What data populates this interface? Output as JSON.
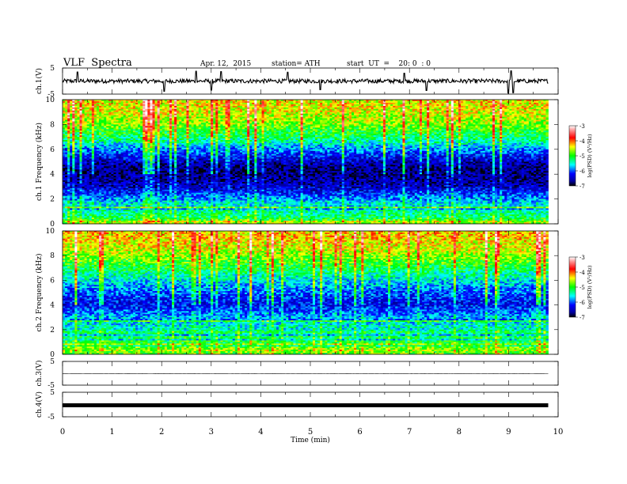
{
  "header": {
    "title": "VLF  Spectra",
    "date": "Apr. 12,  2015",
    "station": "station= ATH",
    "start": "start  UT  =    20: 0  : 0"
  },
  "chart_data": [
    {
      "type": "line",
      "panel": "ch1-waveform",
      "ylabel": "ch.1(V)",
      "yticks": [
        "5",
        "-5"
      ],
      "ylim": [
        -5,
        5
      ],
      "xlim": [
        0,
        10
      ],
      "data_end_min": 9.8,
      "baseline": 0,
      "noise_amplitude": 0.8,
      "spikes": [
        {
          "x": 0.3,
          "y": 3.5
        },
        {
          "x": 2.05,
          "y": -3.9
        },
        {
          "x": 2.7,
          "y": 3.8
        },
        {
          "x": 3.0,
          "y": -3.5
        },
        {
          "x": 3.2,
          "y": 3.6
        },
        {
          "x": 4.55,
          "y": 3.4
        },
        {
          "x": 5.2,
          "y": -3.3
        },
        {
          "x": 6.9,
          "y": 3.0
        },
        {
          "x": 7.35,
          "y": -3.6
        },
        {
          "x": 9.0,
          "y": -4.6
        },
        {
          "x": 9.05,
          "y": 3.9
        },
        {
          "x": 9.1,
          "y": -4.5
        }
      ]
    },
    {
      "type": "heatmap",
      "panel": "ch1-spectrogram",
      "ylabel": "ch.1 Frequency  (kHz)",
      "yticks": [
        "0",
        "2",
        "4",
        "6",
        "8",
        "10"
      ],
      "ylim": [
        0,
        10
      ],
      "xlim": [
        0,
        10
      ],
      "data_end_min": 9.8,
      "freq_profile_kHz": [
        0,
        0.5,
        1,
        1.5,
        2,
        2.5,
        3,
        3.5,
        4,
        4.5,
        5,
        5.5,
        6,
        6.5,
        7,
        7.5,
        8,
        8.5,
        9,
        9.5,
        10
      ],
      "log_psd_profile": [
        -4.6,
        -5.2,
        -5.4,
        -5.5,
        -5.8,
        -6.2,
        -6.5,
        -6.6,
        -6.7,
        -6.7,
        -6.5,
        -6.2,
        -5.9,
        -5.5,
        -5.2,
        -5.0,
        -4.7,
        -4.6,
        -4.5,
        -4.4,
        -4.4
      ],
      "colorbar": {
        "label": "log(PSD) (V²/Hz)",
        "ticks": [
          "-3",
          "-4",
          "-5",
          "-6",
          "-7"
        ],
        "range": [
          -7,
          -3
        ]
      }
    },
    {
      "type": "heatmap",
      "panel": "ch2-spectrogram",
      "ylabel": "ch.2 Frequency  (kHz)",
      "yticks": [
        "0",
        "2",
        "4",
        "6",
        "8",
        "10"
      ],
      "ylim": [
        0,
        10
      ],
      "xlim": [
        0,
        10
      ],
      "data_end_min": 9.8,
      "freq_profile_kHz": [
        0,
        0.5,
        1,
        1.5,
        2,
        2.5,
        3,
        3.5,
        4,
        4.5,
        5,
        5.5,
        6,
        6.5,
        7,
        7.5,
        8,
        8.5,
        9,
        9.5,
        10
      ],
      "log_psd_profile": [
        -4.4,
        -4.8,
        -5.0,
        -5.2,
        -5.4,
        -5.6,
        -5.8,
        -6.0,
        -6.3,
        -6.2,
        -6.0,
        -5.8,
        -5.6,
        -5.4,
        -5.1,
        -4.9,
        -4.7,
        -4.5,
        -4.4,
        -4.3,
        -4.3
      ],
      "colorbar": {
        "label": "log(PSD) (V²/Hz)",
        "ticks": [
          "-3",
          "-4",
          "-5",
          "-6",
          "-7"
        ],
        "range": [
          -7,
          -3
        ]
      }
    },
    {
      "type": "line",
      "panel": "ch3-waveform",
      "ylabel": "ch.3(V)",
      "yticks": [
        "5",
        "-5"
      ],
      "ylim": [
        -5,
        5
      ],
      "xlim": [
        0,
        10
      ],
      "data_end_min": 9.8,
      "baseline": -0.2,
      "noise_amplitude": 0.05
    },
    {
      "type": "line",
      "panel": "ch4-waveform",
      "ylabel": "ch.4(V)",
      "yticks": [
        "5",
        "-5"
      ],
      "ylim": [
        -5,
        5
      ],
      "xlim": [
        0,
        10
      ],
      "data_end_min": 9.8,
      "baseline": -0.3,
      "noise_amplitude": 0.35
    }
  ],
  "x_axis": {
    "label": "Time  (min)",
    "ticks": [
      "0",
      "1",
      "2",
      "3",
      "4",
      "5",
      "6",
      "7",
      "8",
      "9",
      "10"
    ]
  }
}
